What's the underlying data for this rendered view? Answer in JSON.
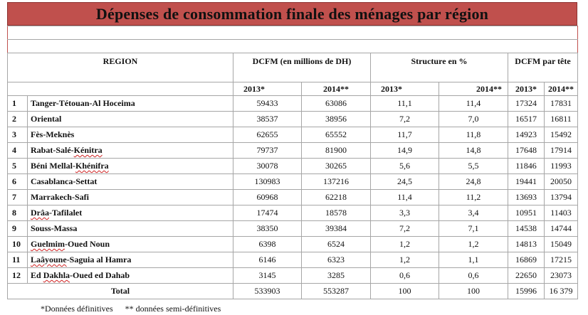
{
  "title": "Dépenses de consommation finale des ménages par région",
  "headers": {
    "region": "REGION",
    "dcfm": "DCFM (en millions de DH)",
    "structure": "Structure en %",
    "per_capita": "DCFM par tête",
    "years": [
      "2013*",
      "2014**",
      "2013*",
      "2014**",
      "2013*",
      "2014**"
    ]
  },
  "rows": [
    {
      "idx": "1",
      "region": "Tanger-Tétouan-Al Hoceima",
      "v": [
        "59433",
        "63086",
        "11,1",
        "11,4",
        "17324",
        "17831"
      ]
    },
    {
      "idx": "2",
      "region": "Oriental",
      "v": [
        "38537",
        "38956",
        "7,2",
        "7,0",
        "16517",
        "16811"
      ]
    },
    {
      "idx": "3",
      "region": "Fès-Meknès",
      "v": [
        "62655",
        "65552",
        "11,7",
        "11,8",
        "14923",
        "15492"
      ]
    },
    {
      "idx": "4",
      "region": "Rabat-Salé-Kénitra",
      "v": [
        "79737",
        "81900",
        "14,9",
        "14,8",
        "17648",
        "17914"
      ]
    },
    {
      "idx": "5",
      "region": "Béni Mellal-Khénifra",
      "v": [
        "30078",
        "30265",
        "5,6",
        "5,5",
        "11846",
        "11993"
      ]
    },
    {
      "idx": "6",
      "region": "Casablanca-Settat",
      "v": [
        "130983",
        "137216",
        "24,5",
        "24,8",
        "19441",
        "20050"
      ]
    },
    {
      "idx": "7",
      "region": "Marrakech-Safi",
      "v": [
        "60968",
        "62218",
        "11,4",
        "11,2",
        "13693",
        "13794"
      ]
    },
    {
      "idx": "8",
      "region": "Drâa-Tafilalet",
      "v": [
        "17474",
        "18578",
        "3,3",
        "3,4",
        "10951",
        "11403"
      ]
    },
    {
      "idx": "9",
      "region": "Souss-Massa",
      "v": [
        "38350",
        "39384",
        "7,2",
        "7,1",
        "14538",
        "14744"
      ]
    },
    {
      "idx": "10",
      "region": "Guelmim-Oued Noun",
      "v": [
        "6398",
        "6524",
        "1,2",
        "1,2",
        "14813",
        "15049"
      ]
    },
    {
      "idx": "11",
      "region": "Laâyoune-Saguia al Hamra",
      "v": [
        "6146",
        "6323",
        "1,2",
        "1,1",
        "16869",
        "17215"
      ]
    },
    {
      "idx": "12",
      "region": "Ed Dakhla-Oued ed Dahab",
      "v": [
        "3145",
        "3285",
        "0,6",
        "0,6",
        "22650",
        "23073"
      ]
    }
  ],
  "total": {
    "label": "Total",
    "v": [
      "533903",
      "553287",
      "100",
      "100",
      "15996",
      "16 379"
    ]
  },
  "footnote": {
    "definitive": "*Données définitives",
    "semi": "** données semi-définitives"
  }
}
